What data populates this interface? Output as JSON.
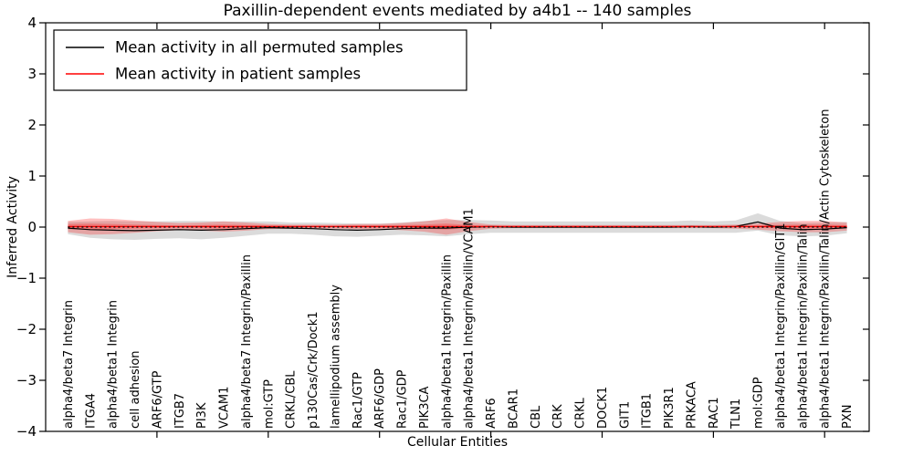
{
  "chart_data": {
    "type": "line",
    "title": "Paxillin-dependent events mediated by a4b1 -- 140 samples",
    "xlabel": "Cellular Entities",
    "ylabel": "Inferred Activity",
    "ylim": [
      -4,
      4
    ],
    "yticks": [
      4,
      3,
      2,
      1,
      0,
      -1,
      -2,
      -3,
      -4
    ],
    "ytick_labels": [
      "4",
      "3",
      "2",
      "1",
      "0",
      "−1",
      "−2",
      "−3",
      "−4"
    ],
    "xticks": [
      5,
      10,
      15,
      20,
      25,
      30,
      35
    ],
    "grid": false,
    "legend_position": "upper-left",
    "categories": [
      "alpha4/beta7 Integrin",
      "ITGA4",
      "alpha4/beta1 Integrin",
      "cell adhesion",
      "ARF6/GTP",
      "ITGB7",
      "PI3K",
      "VCAM1",
      "alpha4/beta7 Integrin/Paxillin",
      "mol:GTP",
      "CRKL/CBL",
      "p130Cas/Crk/Dock1",
      "lamellipodium assembly",
      "Rac1/GTP",
      "ARF6/GDP",
      "Rac1/GDP",
      "PIK3CA",
      "alpha4/beta1 Integrin/Paxillin",
      "alpha4/beta1 Integrin/Paxillin/VCAM1",
      "ARF6",
      "BCAR1",
      "CBL",
      "CRK",
      "CRKL",
      "DOCK1",
      "GIT1",
      "ITGB1",
      "PIK3R1",
      "PRKACA",
      "RAC1",
      "TLN1",
      "mol:GDP",
      "alpha4/beta1 Integrin/Paxillin/GIT1",
      "alpha4/beta1 Integrin/Paxillin/Talin",
      "alpha4/beta1 Integrin/Paxillin/Talin/Actin Cytoskeleton",
      "PXN"
    ],
    "series": [
      {
        "id": "permuted",
        "name": "Mean activity in all permuted samples",
        "color": "#000000",
        "values": [
          -0.02,
          -0.05,
          -0.06,
          -0.07,
          -0.06,
          -0.05,
          -0.06,
          -0.05,
          -0.03,
          -0.01,
          -0.02,
          -0.03,
          -0.05,
          -0.06,
          -0.05,
          -0.03,
          -0.02,
          -0.02,
          0.0,
          0.01,
          0.0,
          0.0,
          0.0,
          0.0,
          0.0,
          0.0,
          0.0,
          0.0,
          0.01,
          0.0,
          0.01,
          0.1,
          -0.02,
          -0.05,
          -0.04,
          -0.01
        ]
      },
      {
        "id": "patient",
        "name": "Mean activity in patient samples",
        "color": "#ff0000",
        "values": [
          0.01,
          0.01,
          0.01,
          0.01,
          0.01,
          0.01,
          0.01,
          0.01,
          0.01,
          0.01,
          0.01,
          0.01,
          0.01,
          0.01,
          0.01,
          0.01,
          0.01,
          0.01,
          0.01,
          0.01,
          0.01,
          0.01,
          0.01,
          0.01,
          0.01,
          0.01,
          0.01,
          0.01,
          0.01,
          0.01,
          0.01,
          0.01,
          0.01,
          0.01,
          0.01,
          0.01
        ]
      }
    ],
    "bands": [
      {
        "series": 0,
        "name": "confidence-band-permuted",
        "color": "#888888",
        "opacity": 0.3,
        "half_width": [
          0.12,
          0.16,
          0.18,
          0.18,
          0.17,
          0.17,
          0.18,
          0.16,
          0.14,
          0.12,
          0.11,
          0.12,
          0.13,
          0.13,
          0.12,
          0.12,
          0.14,
          0.16,
          0.14,
          0.12,
          0.11,
          0.11,
          0.11,
          0.11,
          0.11,
          0.11,
          0.11,
          0.11,
          0.12,
          0.11,
          0.12,
          0.17,
          0.14,
          0.13,
          0.13,
          0.11
        ]
      },
      {
        "series": 1,
        "name": "confidence-band-patient-outer",
        "color": "#ff0000",
        "opacity": 0.25,
        "half_width": [
          0.11,
          0.16,
          0.15,
          0.12,
          0.09,
          0.07,
          0.08,
          0.1,
          0.08,
          0.05,
          0.04,
          0.04,
          0.04,
          0.05,
          0.05,
          0.07,
          0.1,
          0.16,
          0.09,
          0.04,
          0.03,
          0.03,
          0.03,
          0.03,
          0.03,
          0.03,
          0.03,
          0.03,
          0.03,
          0.03,
          0.04,
          0.06,
          0.09,
          0.11,
          0.11,
          0.08
        ]
      },
      {
        "series": 1,
        "name": "confidence-band-patient-inner",
        "color": "#ff0000",
        "opacity": 0.25,
        "half_width": [
          0.05,
          0.06,
          0.05,
          0.04,
          0.03,
          0.02,
          0.03,
          0.04,
          0.03,
          0.02,
          0.015,
          0.015,
          0.015,
          0.02,
          0.02,
          0.03,
          0.04,
          0.06,
          0.03,
          0.015,
          0.01,
          0.01,
          0.01,
          0.01,
          0.01,
          0.01,
          0.01,
          0.01,
          0.01,
          0.01,
          0.015,
          0.025,
          0.035,
          0.04,
          0.04,
          0.03
        ]
      }
    ],
    "reference_line": {
      "y": 0,
      "style": "dashed",
      "color": "#000000"
    }
  }
}
